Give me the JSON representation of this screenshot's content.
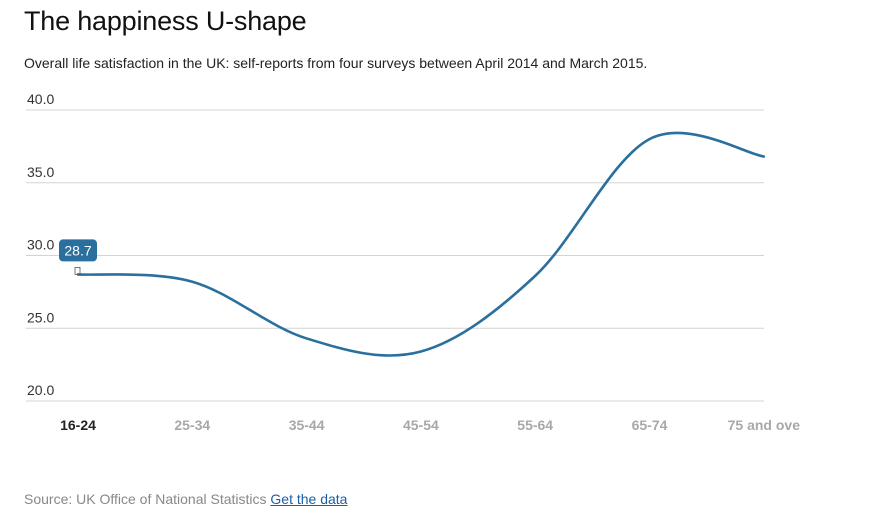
{
  "header": {
    "title": "The happiness U-shape",
    "subtitle": "Overall life satisfaction in the UK: self-reports from four surveys between April 2014 and March 2015."
  },
  "footer": {
    "source_text": "Source: UK Office of National Statistics",
    "link_label": "Get the data"
  },
  "colors": {
    "line": "#2a6f9e",
    "tooltip_bg": "#2a6f9e",
    "grid": "#d4d4d4",
    "active_label": "#222222",
    "inactive_label": "#a8a8a8"
  },
  "chart_data": {
    "type": "line",
    "title": "The happiness U-shape",
    "subtitle": "Overall life satisfaction in the UK: self-reports from four surveys between April 2014 and March 2015.",
    "xlabel": "",
    "ylabel": "",
    "categories": [
      "16-24",
      "25-34",
      "35-44",
      "45-54",
      "55-64",
      "65-74",
      "75 and ove"
    ],
    "series": [
      {
        "values": [
          28.7,
          28.2,
          24.3,
          23.4,
          28.6,
          38.0,
          36.8
        ]
      }
    ],
    "ylim": [
      20,
      40
    ],
    "yticks": [
      "20.0",
      "25.0",
      "30.0",
      "35.0",
      "40.0"
    ],
    "ytick_values": [
      20,
      25,
      30,
      35,
      40
    ],
    "grid": true,
    "active_category": "16-24",
    "tooltip": {
      "category": "16-24",
      "label": "28.7"
    }
  }
}
